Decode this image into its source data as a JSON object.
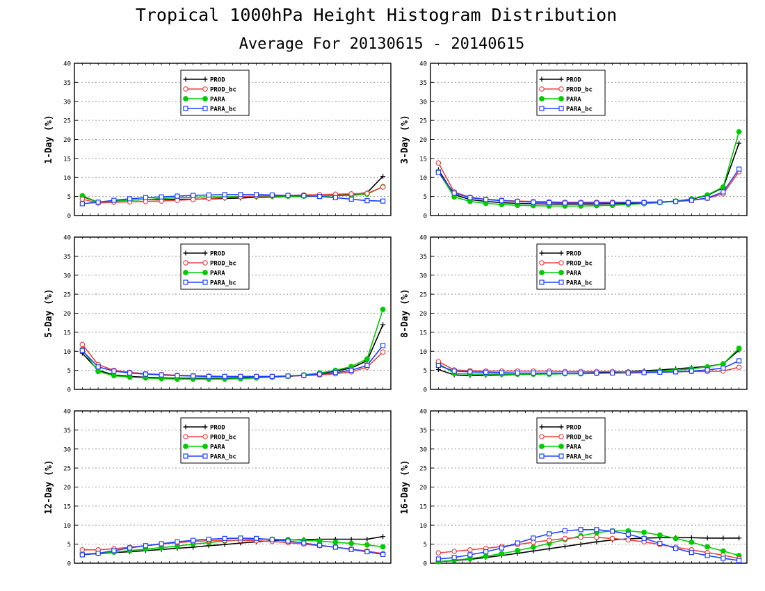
{
  "title": "Tropical 1000hPa Height Histogram Distribution",
  "subtitle": "Average For 20130615 - 20140615",
  "colors": {
    "PROD": "#000000",
    "PROD_bc": "#f04040",
    "PARA": "#00cc00",
    "PARA_bc": "#2040ff"
  },
  "legend_entries": [
    "PROD",
    "PROD_bc",
    "PARA",
    "PARA_bc"
  ],
  "chart_data": [
    {
      "type": "line",
      "ylabel": "1-Day (%)",
      "ylim": [
        0,
        40
      ],
      "yticks": [
        0,
        5,
        10,
        15,
        20,
        25,
        30,
        35,
        40
      ],
      "x": [
        1,
        2,
        3,
        4,
        5,
        6,
        7,
        8,
        9,
        10,
        11,
        12,
        13,
        14,
        15,
        16,
        17,
        18,
        19,
        20
      ],
      "grid": true,
      "legend": "top-left",
      "series": [
        {
          "name": "PROD",
          "values": [
            5.0,
            3.5,
            3.8,
            4.0,
            4.2,
            4.2,
            4.3,
            4.3,
            4.4,
            4.5,
            4.6,
            4.8,
            4.9,
            5.0,
            5.0,
            5.1,
            5.3,
            5.5,
            6.0,
            10.3
          ]
        },
        {
          "name": "PROD_bc",
          "values": [
            4.3,
            3.3,
            3.5,
            3.6,
            3.7,
            3.8,
            4.0,
            4.2,
            4.5,
            4.7,
            4.9,
            5.1,
            5.2,
            5.3,
            5.4,
            5.5,
            5.6,
            5.7,
            5.8,
            7.5
          ]
        },
        {
          "name": "PARA",
          "values": [
            5.2,
            3.5,
            3.8,
            4.0,
            4.2,
            4.5,
            4.7,
            4.8,
            4.9,
            4.9,
            5.0,
            5.0,
            5.1,
            5.1,
            5.1,
            5.1,
            5.2,
            5.3,
            5.6,
            7.6
          ]
        },
        {
          "name": "PARA_bc",
          "values": [
            3.1,
            3.5,
            4.0,
            4.4,
            4.7,
            4.9,
            5.1,
            5.3,
            5.4,
            5.5,
            5.5,
            5.5,
            5.4,
            5.3,
            5.2,
            5.0,
            4.7,
            4.3,
            3.9,
            3.8
          ]
        }
      ]
    },
    {
      "type": "line",
      "ylabel": "3-Day (%)",
      "ylim": [
        0,
        40
      ],
      "yticks": [
        0,
        5,
        10,
        15,
        20,
        25,
        30,
        35,
        40
      ],
      "x": [
        1,
        2,
        3,
        4,
        5,
        6,
        7,
        8,
        9,
        10,
        11,
        12,
        13,
        14,
        15,
        16,
        17,
        18,
        19,
        20
      ],
      "grid": true,
      "legend": "top-left",
      "series": [
        {
          "name": "PROD",
          "values": [
            12.0,
            5.5,
            4.2,
            3.7,
            3.4,
            3.2,
            3.1,
            3.0,
            3.0,
            3.0,
            3.0,
            3.1,
            3.2,
            3.3,
            3.5,
            3.8,
            4.3,
            5.3,
            7.3,
            19.0
          ]
        },
        {
          "name": "PROD_bc",
          "values": [
            13.8,
            6.2,
            4.8,
            4.3,
            4.0,
            3.8,
            3.7,
            3.6,
            3.5,
            3.5,
            3.5,
            3.5,
            3.5,
            3.5,
            3.6,
            3.7,
            4.0,
            4.5,
            5.7,
            11.5
          ]
        },
        {
          "name": "PARA",
          "values": [
            11.5,
            4.9,
            3.7,
            3.2,
            2.9,
            2.7,
            2.6,
            2.5,
            2.5,
            2.5,
            2.6,
            2.7,
            2.9,
            3.1,
            3.4,
            3.8,
            4.4,
            5.4,
            7.5,
            22.0
          ]
        },
        {
          "name": "PARA_bc",
          "values": [
            11.3,
            5.9,
            4.7,
            4.2,
            3.9,
            3.7,
            3.5,
            3.4,
            3.3,
            3.3,
            3.3,
            3.3,
            3.4,
            3.4,
            3.5,
            3.7,
            4.0,
            4.6,
            6.2,
            12.2
          ]
        }
      ]
    },
    {
      "type": "line",
      "ylabel": "5-Day (%)",
      "ylim": [
        0,
        40
      ],
      "yticks": [
        0,
        5,
        10,
        15,
        20,
        25,
        30,
        35,
        40
      ],
      "x": [
        1,
        2,
        3,
        4,
        5,
        6,
        7,
        8,
        9,
        10,
        11,
        12,
        13,
        14,
        15,
        16,
        17,
        18,
        19,
        20
      ],
      "grid": true,
      "legend": "top-left",
      "series": [
        {
          "name": "PROD",
          "values": [
            9.5,
            5.0,
            3.8,
            3.4,
            3.2,
            3.0,
            2.9,
            2.9,
            2.9,
            2.9,
            3.0,
            3.1,
            3.2,
            3.4,
            3.7,
            4.2,
            4.8,
            5.6,
            7.5,
            17.0
          ]
        },
        {
          "name": "PROD_bc",
          "values": [
            11.8,
            6.5,
            5.0,
            4.5,
            4.1,
            3.9,
            3.7,
            3.6,
            3.5,
            3.4,
            3.4,
            3.4,
            3.4,
            3.5,
            3.6,
            3.8,
            4.1,
            4.6,
            5.8,
            9.8
          ]
        },
        {
          "name": "PARA",
          "values": [
            10.5,
            4.7,
            3.6,
            3.2,
            3.0,
            2.8,
            2.7,
            2.7,
            2.7,
            2.7,
            2.8,
            3.0,
            3.2,
            3.4,
            3.8,
            4.3,
            5.0,
            6.0,
            8.0,
            21.0
          ]
        },
        {
          "name": "PARA_bc",
          "values": [
            10.2,
            5.9,
            4.8,
            4.3,
            4.0,
            3.8,
            3.6,
            3.5,
            3.4,
            3.4,
            3.4,
            3.4,
            3.4,
            3.5,
            3.7,
            4.0,
            4.4,
            5.0,
            6.3,
            11.5
          ]
        }
      ]
    },
    {
      "type": "line",
      "ylabel": "8-Day (%)",
      "ylim": [
        0,
        40
      ],
      "yticks": [
        0,
        5,
        10,
        15,
        20,
        25,
        30,
        35,
        40
      ],
      "x": [
        1,
        2,
        3,
        4,
        5,
        6,
        7,
        8,
        9,
        10,
        11,
        12,
        13,
        14,
        15,
        16,
        17,
        18,
        19,
        20
      ],
      "grid": true,
      "legend": "top-left",
      "series": [
        {
          "name": "PROD",
          "values": [
            5.2,
            3.8,
            3.6,
            3.7,
            3.8,
            3.9,
            4.0,
            4.1,
            4.2,
            4.3,
            4.4,
            4.5,
            4.7,
            4.9,
            5.1,
            5.4,
            5.7,
            6.0,
            6.7,
            10.3
          ]
        },
        {
          "name": "PROD_bc",
          "values": [
            7.3,
            5.1,
            4.9,
            4.8,
            4.8,
            4.8,
            4.8,
            4.8,
            4.7,
            4.7,
            4.7,
            4.7,
            4.6,
            4.6,
            4.6,
            4.6,
            4.7,
            4.7,
            4.8,
            5.8
          ]
        },
        {
          "name": "PARA",
          "values": [
            6.8,
            4.2,
            4.0,
            4.0,
            4.0,
            4.0,
            4.0,
            4.0,
            4.1,
            4.1,
            4.2,
            4.3,
            4.4,
            4.6,
            4.8,
            5.0,
            5.4,
            5.9,
            6.7,
            10.8
          ]
        },
        {
          "name": "PARA_bc",
          "values": [
            6.3,
            4.8,
            4.6,
            4.5,
            4.4,
            4.3,
            4.3,
            4.3,
            4.3,
            4.3,
            4.3,
            4.3,
            4.3,
            4.4,
            4.5,
            4.6,
            4.8,
            5.1,
            5.6,
            7.5
          ]
        }
      ]
    },
    {
      "type": "line",
      "ylabel": "12-Day (%)",
      "ylim": [
        0,
        40
      ],
      "yticks": [
        0,
        5,
        10,
        15,
        20,
        25,
        30,
        35,
        40
      ],
      "x": [
        1,
        2,
        3,
        4,
        5,
        6,
        7,
        8,
        9,
        10,
        11,
        12,
        13,
        14,
        15,
        16,
        17,
        18,
        19,
        20
      ],
      "grid": true,
      "legend": "top-left",
      "series": [
        {
          "name": "PROD",
          "values": [
            2.3,
            2.5,
            2.8,
            3.0,
            3.3,
            3.6,
            3.9,
            4.2,
            4.6,
            4.9,
            5.3,
            5.6,
            5.9,
            6.1,
            6.2,
            6.3,
            6.3,
            6.3,
            6.3,
            7.0
          ]
        },
        {
          "name": "PROD_bc",
          "values": [
            3.5,
            3.5,
            3.8,
            4.2,
            4.6,
            5.0,
            5.4,
            5.7,
            5.9,
            6.0,
            6.0,
            5.9,
            5.7,
            5.4,
            5.0,
            4.6,
            4.2,
            3.7,
            3.2,
            2.5
          ]
        },
        {
          "name": "PARA",
          "values": [
            2.4,
            2.6,
            2.9,
            3.3,
            3.7,
            4.1,
            4.5,
            5.0,
            5.4,
            5.8,
            6.1,
            6.3,
            6.3,
            6.2,
            6.0,
            5.8,
            5.5,
            5.2,
            4.8,
            4.3
          ]
        },
        {
          "name": "PARA_bc",
          "values": [
            2.2,
            2.6,
            3.3,
            4.0,
            4.6,
            5.1,
            5.6,
            6.0,
            6.3,
            6.5,
            6.6,
            6.5,
            6.2,
            5.8,
            5.3,
            4.7,
            4.2,
            3.6,
            3.0,
            2.3
          ]
        }
      ]
    },
    {
      "type": "line",
      "ylabel": "16-Day (%)",
      "ylim": [
        0,
        40
      ],
      "yticks": [
        0,
        5,
        10,
        15,
        20,
        25,
        30,
        35,
        40
      ],
      "x": [
        1,
        2,
        3,
        4,
        5,
        6,
        7,
        8,
        9,
        10,
        11,
        12,
        13,
        14,
        15,
        16,
        17,
        18,
        19,
        20
      ],
      "grid": true,
      "legend": "top-left",
      "series": [
        {
          "name": "PROD",
          "values": [
            0.4,
            0.7,
            1.0,
            1.5,
            2.0,
            2.6,
            3.2,
            3.8,
            4.4,
            5.0,
            5.6,
            6.1,
            6.4,
            6.6,
            6.7,
            6.7,
            6.7,
            6.6,
            6.6,
            6.6
          ]
        },
        {
          "name": "PROD_bc",
          "values": [
            2.7,
            3.1,
            3.5,
            3.9,
            4.4,
            4.9,
            5.5,
            6.0,
            6.5,
            6.8,
            6.8,
            6.5,
            6.1,
            5.6,
            4.9,
            4.2,
            3.5,
            2.8,
            2.1,
            1.2
          ]
        },
        {
          "name": "PARA",
          "values": [
            0.4,
            0.8,
            1.2,
            1.8,
            2.5,
            3.3,
            4.2,
            5.2,
            6.2,
            7.2,
            8.0,
            8.5,
            8.5,
            8.1,
            7.4,
            6.5,
            5.5,
            4.3,
            3.2,
            2.0
          ]
        },
        {
          "name": "PARA_bc",
          "values": [
            1.1,
            1.5,
            2.2,
            3.0,
            4.0,
            5.3,
            6.6,
            7.7,
            8.5,
            8.8,
            8.8,
            8.4,
            7.6,
            6.5,
            5.2,
            3.9,
            2.8,
            2.0,
            1.3,
            0.7
          ]
        }
      ]
    }
  ]
}
